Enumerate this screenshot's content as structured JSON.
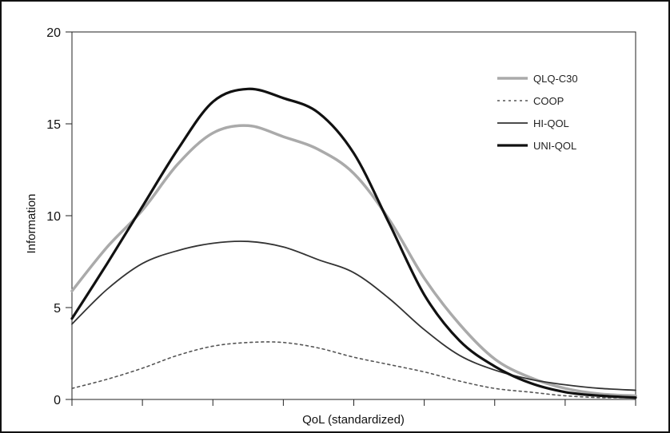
{
  "chart_data": {
    "type": "line",
    "title": "",
    "xlabel": "QoL (standardized)",
    "ylabel": "Information",
    "ylim": [
      0,
      20
    ],
    "xlim": [
      -4,
      4
    ],
    "y_ticks": [
      "0",
      "5",
      "10",
      "15",
      "20"
    ],
    "x_ticks_labeled": false,
    "x_tick_count": 9,
    "grid": false,
    "legend_position": "top-right",
    "x": [
      -4,
      -3.5,
      -3,
      -2.5,
      -2,
      -1.5,
      -1,
      -0.5,
      0,
      0.5,
      1,
      1.5,
      2,
      2.5,
      3,
      3.5,
      4
    ],
    "series": [
      {
        "name": "QLQ-C30",
        "color": "#aaaaaa",
        "style": "solid-thick",
        "values": [
          5.9,
          8.3,
          10.3,
          12.8,
          14.5,
          14.9,
          14.3,
          13.6,
          12.3,
          9.8,
          6.6,
          4.1,
          2.2,
          1.2,
          0.6,
          0.3,
          0.2
        ]
      },
      {
        "name": "COOP",
        "color": "#555555",
        "style": "dotted",
        "values": [
          0.6,
          1.1,
          1.7,
          2.4,
          2.9,
          3.1,
          3.1,
          2.8,
          2.3,
          1.9,
          1.5,
          1.0,
          0.6,
          0.4,
          0.2,
          0.1,
          0.1
        ]
      },
      {
        "name": "HI-QOL",
        "color": "#333333",
        "style": "solid-thin",
        "values": [
          4.1,
          6.0,
          7.4,
          8.1,
          8.5,
          8.6,
          8.3,
          7.6,
          6.9,
          5.5,
          3.8,
          2.4,
          1.6,
          1.1,
          0.8,
          0.6,
          0.5
        ]
      },
      {
        "name": "UNI-QOL",
        "color": "#111111",
        "style": "solid-heavy",
        "values": [
          4.4,
          7.4,
          10.5,
          13.6,
          16.2,
          16.9,
          16.4,
          15.6,
          13.4,
          9.6,
          5.7,
          3.2,
          1.8,
          0.9,
          0.4,
          0.2,
          0.1
        ]
      }
    ]
  }
}
